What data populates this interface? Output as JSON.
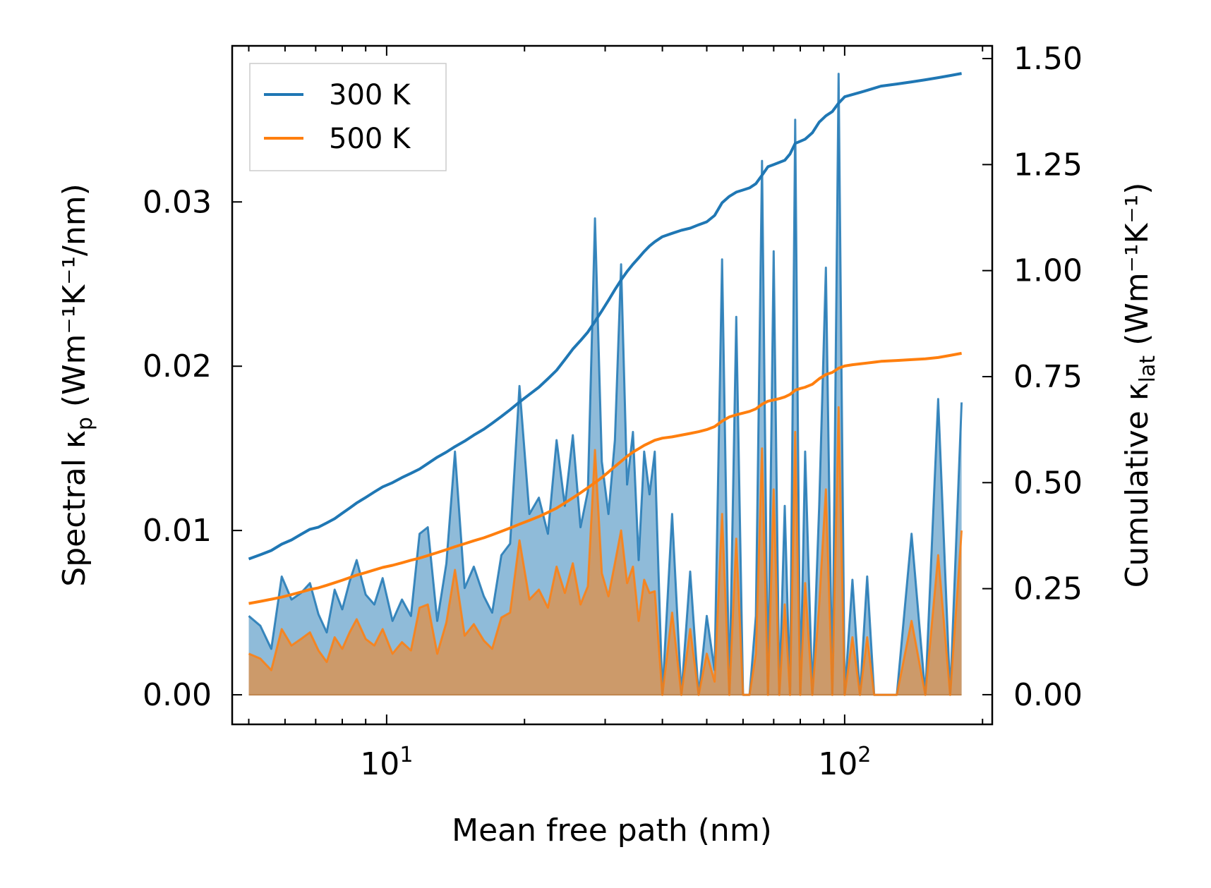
{
  "chart_data": {
    "type": "line",
    "xscale": "log",
    "xlabel": "Mean free path (nm)",
    "ylabel_left": {
      "main": "Spectral κ",
      "sub": "p",
      "unit": "(Wm⁻¹K⁻¹/nm)"
    },
    "ylabel_right": {
      "main": "Cumulative κ",
      "sub": "lat",
      "unit": "(Wm⁻¹K⁻¹)"
    },
    "xlim": [
      4.6,
      210
    ],
    "ylim_left": [
      -0.0018,
      0.0395
    ],
    "ylim_right": [
      -0.07,
      1.53
    ],
    "x_ticks": [
      {
        "value": 10,
        "base": "10",
        "exp": "1"
      },
      {
        "value": 100,
        "base": "10",
        "exp": "2"
      }
    ],
    "y_ticks_left": [
      {
        "value": 0.0,
        "label": "0.00"
      },
      {
        "value": 0.01,
        "label": "0.01"
      },
      {
        "value": 0.02,
        "label": "0.02"
      },
      {
        "value": 0.03,
        "label": "0.03"
      }
    ],
    "y_ticks_right": [
      {
        "value": 0.0,
        "label": "0.00"
      },
      {
        "value": 0.25,
        "label": "0.25"
      },
      {
        "value": 0.5,
        "label": "0.50"
      },
      {
        "value": 0.75,
        "label": "0.75"
      },
      {
        "value": 1.0,
        "label": "1.00"
      },
      {
        "value": 1.25,
        "label": "1.25"
      },
      {
        "value": 1.5,
        "label": "1.50"
      }
    ],
    "legend": {
      "position": "top-left"
    },
    "spectral_x": [
      5.0,
      5.3,
      5.6,
      5.9,
      6.2,
      6.5,
      6.8,
      7.1,
      7.4,
      7.7,
      8.0,
      8.3,
      8.6,
      9.0,
      9.4,
      9.8,
      10.3,
      10.8,
      11.3,
      11.8,
      12.3,
      12.9,
      13.5,
      14.1,
      14.8,
      15.5,
      16.3,
      17.0,
      17.8,
      18.6,
      19.5,
      20.5,
      21.5,
      22.5,
      23.5,
      24.5,
      25.5,
      26.5,
      27.5,
      28.5,
      29.5,
      30.5,
      31.5,
      32.5,
      33.5,
      34.5,
      35.5,
      36.5,
      37.5,
      38.5,
      40.0,
      42.0,
      44.0,
      46.0,
      48.0,
      50.0,
      52.0,
      54.0,
      56.0,
      58.0,
      60.0,
      62.0,
      64.0,
      66.0,
      68.0,
      70.0,
      72.0,
      74.0,
      76.0,
      78.0,
      80.0,
      82.0,
      85.0,
      88.0,
      91.0,
      94.0,
      97.0,
      100.0,
      104.0,
      108.0,
      112.0,
      116.0,
      120.0,
      130.0,
      140.0,
      150.0,
      160.0,
      170.0,
      180.0
    ],
    "series": [
      {
        "name": "300 K",
        "color": "#1f77b4",
        "spectral": [
          0.0048,
          0.0042,
          0.0028,
          0.0072,
          0.0058,
          0.0062,
          0.0068,
          0.0049,
          0.0038,
          0.0064,
          0.0052,
          0.0069,
          0.0082,
          0.0061,
          0.0055,
          0.0071,
          0.0045,
          0.0058,
          0.0048,
          0.0098,
          0.0102,
          0.0045,
          0.008,
          0.0148,
          0.0065,
          0.0078,
          0.006,
          0.005,
          0.0085,
          0.0092,
          0.0188,
          0.011,
          0.012,
          0.0098,
          0.0155,
          0.0115,
          0.0158,
          0.0102,
          0.0124,
          0.029,
          0.0142,
          0.011,
          0.0155,
          0.0262,
          0.0128,
          0.016,
          0.0082,
          0.0148,
          0.0122,
          0.0148,
          0.0,
          0.011,
          0.0,
          0.0075,
          0.0,
          0.0048,
          0.0015,
          0.0265,
          0.0,
          0.023,
          0.0,
          0.0,
          0.0048,
          0.0325,
          0.0,
          0.027,
          0.0,
          0.0115,
          0.0,
          0.035,
          0.0,
          0.0148,
          0.0,
          0.0115,
          0.026,
          0.0,
          0.0378,
          0.0,
          0.007,
          0.0,
          0.0072,
          0.0,
          0.0,
          0.0,
          0.0098,
          0.0,
          0.018,
          0.0,
          0.0178
        ],
        "cumulative": [
          0.32,
          0.33,
          0.34,
          0.355,
          0.365,
          0.378,
          0.39,
          0.395,
          0.405,
          0.415,
          0.428,
          0.44,
          0.452,
          0.465,
          0.478,
          0.49,
          0.5,
          0.512,
          0.522,
          0.532,
          0.545,
          0.56,
          0.572,
          0.585,
          0.598,
          0.612,
          0.626,
          0.64,
          0.656,
          0.672,
          0.69,
          0.708,
          0.725,
          0.745,
          0.765,
          0.79,
          0.815,
          0.835,
          0.855,
          0.88,
          0.905,
          0.93,
          0.955,
          0.978,
          0.998,
          1.015,
          1.03,
          1.045,
          1.058,
          1.068,
          1.08,
          1.088,
          1.095,
          1.1,
          1.108,
          1.115,
          1.13,
          1.16,
          1.175,
          1.185,
          1.19,
          1.195,
          1.205,
          1.225,
          1.245,
          1.25,
          1.255,
          1.26,
          1.275,
          1.3,
          1.305,
          1.31,
          1.325,
          1.35,
          1.365,
          1.375,
          1.395,
          1.41,
          1.415,
          1.42,
          1.425,
          1.43,
          1.435,
          1.44,
          1.445,
          1.45,
          1.455,
          1.46,
          1.465
        ]
      },
      {
        "name": "500 K",
        "color": "#ff7f0e",
        "spectral": [
          0.0025,
          0.0022,
          0.0015,
          0.004,
          0.003,
          0.0034,
          0.0038,
          0.0027,
          0.002,
          0.0035,
          0.0028,
          0.0038,
          0.0046,
          0.0034,
          0.003,
          0.004,
          0.0025,
          0.0032,
          0.0027,
          0.0053,
          0.0055,
          0.0025,
          0.0044,
          0.0076,
          0.0036,
          0.0043,
          0.0033,
          0.0028,
          0.0047,
          0.005,
          0.0094,
          0.0058,
          0.0064,
          0.0053,
          0.0078,
          0.0062,
          0.008,
          0.0055,
          0.0066,
          0.0149,
          0.0074,
          0.006,
          0.008,
          0.01,
          0.0068,
          0.0078,
          0.0045,
          0.007,
          0.0062,
          0.0063,
          0.0,
          0.005,
          0.0,
          0.004,
          0.0,
          0.0025,
          0.0008,
          0.011,
          0.0,
          0.0095,
          0.0,
          0.0,
          0.0025,
          0.015,
          0.0,
          0.0125,
          0.0,
          0.0055,
          0.0,
          0.016,
          0.0,
          0.0068,
          0.0,
          0.0055,
          0.0125,
          0.0,
          0.0175,
          0.0,
          0.0035,
          0.0,
          0.0035,
          0.0,
          0.0,
          0.0,
          0.0045,
          0.0,
          0.0085,
          0.0,
          0.01
        ],
        "cumulative": [
          0.215,
          0.22,
          0.225,
          0.23,
          0.236,
          0.242,
          0.248,
          0.252,
          0.258,
          0.264,
          0.27,
          0.276,
          0.282,
          0.288,
          0.294,
          0.3,
          0.305,
          0.311,
          0.317,
          0.322,
          0.328,
          0.335,
          0.342,
          0.349,
          0.356,
          0.363,
          0.37,
          0.377,
          0.385,
          0.393,
          0.402,
          0.411,
          0.42,
          0.43,
          0.44,
          0.452,
          0.464,
          0.476,
          0.488,
          0.5,
          0.512,
          0.525,
          0.538,
          0.55,
          0.562,
          0.572,
          0.58,
          0.588,
          0.594,
          0.6,
          0.605,
          0.608,
          0.612,
          0.616,
          0.62,
          0.625,
          0.632,
          0.645,
          0.655,
          0.66,
          0.664,
          0.668,
          0.674,
          0.685,
          0.692,
          0.695,
          0.698,
          0.702,
          0.708,
          0.718,
          0.722,
          0.725,
          0.732,
          0.745,
          0.755,
          0.76,
          0.77,
          0.775,
          0.778,
          0.78,
          0.782,
          0.784,
          0.786,
          0.788,
          0.79,
          0.792,
          0.795,
          0.8,
          0.805
        ]
      }
    ]
  }
}
